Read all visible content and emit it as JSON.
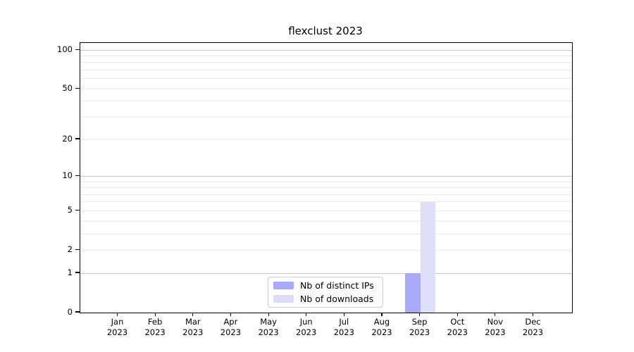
{
  "title": "flexclust 2023",
  "chart_data": {
    "type": "bar",
    "title": "flexclust 2023",
    "categories": [
      "Jan",
      "Feb",
      "Mar",
      "Apr",
      "May",
      "Jun",
      "Jul",
      "Aug",
      "Sep",
      "Oct",
      "Nov",
      "Dec"
    ],
    "category_year": "2023",
    "series": [
      {
        "name": "Nb of distinct IPs",
        "color": "#a9a9f8",
        "values": [
          0,
          0,
          0,
          0,
          0,
          0,
          0,
          0,
          1,
          0,
          0,
          0
        ]
      },
      {
        "name": "Nb of downloads",
        "color": "#dcdcfa",
        "values": [
          0,
          0,
          0,
          0,
          0,
          0,
          0,
          0,
          6,
          0,
          0,
          0
        ]
      }
    ],
    "xlabel": "",
    "ylabel": "",
    "yscale": "log1p",
    "ylim": [
      0,
      115
    ],
    "yticks": [
      0,
      1,
      2,
      5,
      10,
      20,
      50,
      100
    ],
    "major_gridlines": [
      1,
      10,
      100
    ],
    "minor_gridlines": [
      2,
      3,
      4,
      5,
      6,
      7,
      8,
      9,
      20,
      30,
      40,
      50,
      60,
      70,
      80,
      90
    ],
    "grid": true,
    "legend_position": "bottom-center-inside"
  },
  "colors": {
    "background": "#ffffff",
    "axis": "#000000",
    "major_grid": "#c6c6c6",
    "minor_grid": "#ebebeb",
    "legend_border": "#cccccc",
    "bar_distinct_ips": "#a9a9f8",
    "bar_downloads": "#dcdcfa"
  }
}
